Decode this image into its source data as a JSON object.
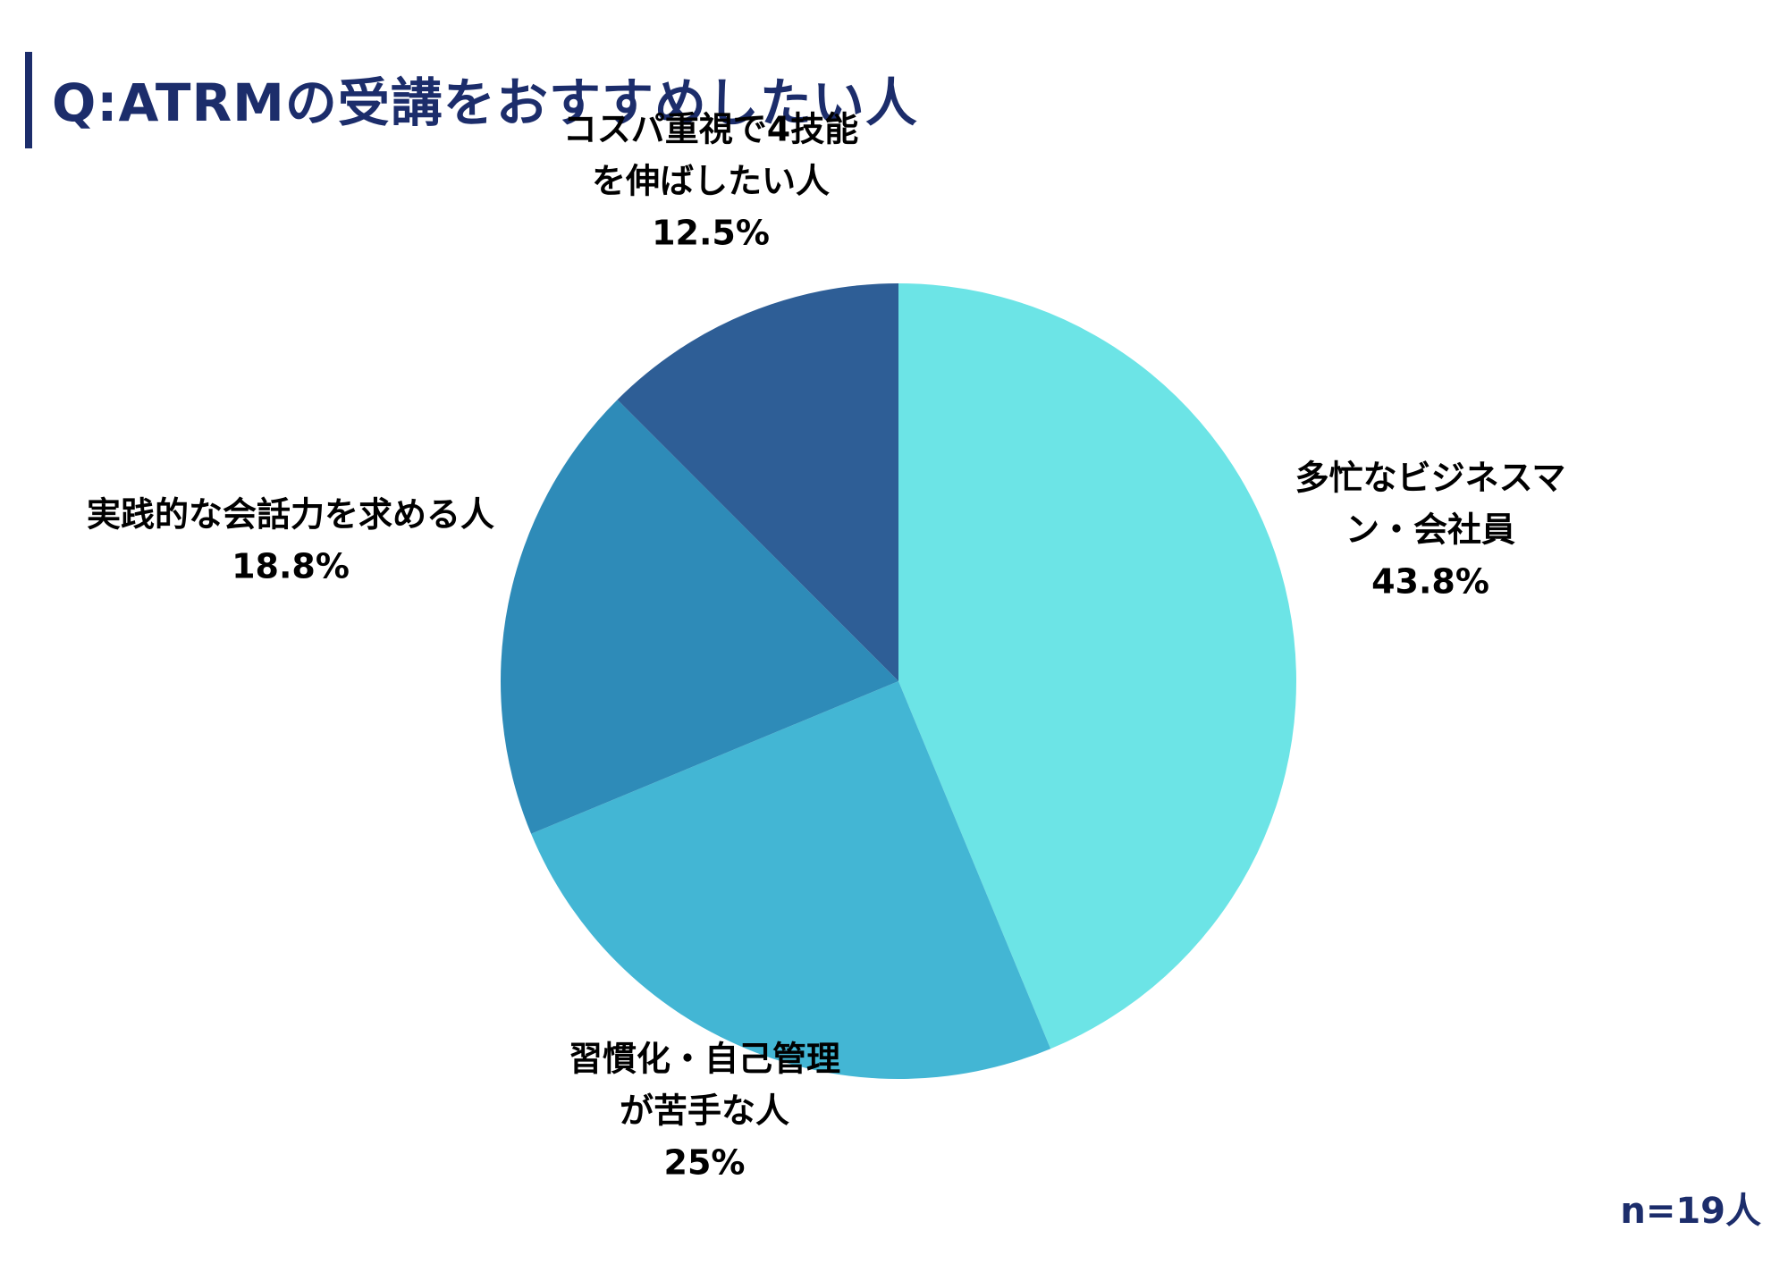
{
  "chart_data": {
    "type": "pie",
    "title": "Q:ATRMの受講をおすすめしたい人",
    "start": "12 o'clock",
    "direction": "clockwise",
    "slices": [
      {
        "lines": [
          "多忙なビジネスマ",
          "ン・会社員",
          "43.8%"
        ],
        "value": 43.8,
        "color": "#6ce4e6"
      },
      {
        "lines": [
          "習慣化・自己管理",
          "が苦手な人",
          "25%"
        ],
        "value": 25,
        "color": "#43b6d4"
      },
      {
        "lines": [
          "実践的な会話力を求める人",
          "18.8%"
        ],
        "value": 18.8,
        "color": "#2e8bb8"
      },
      {
        "lines": [
          "コスパ重視で4技能",
          "を伸ばしたい人",
          "12.5%"
        ],
        "value": 12.5,
        "color": "#2e5e96"
      }
    ]
  },
  "footer": {
    "sample_size": "n=19人"
  },
  "colors": {
    "title": "#1c2d6b",
    "accent_bar": "#1c2d6b"
  }
}
